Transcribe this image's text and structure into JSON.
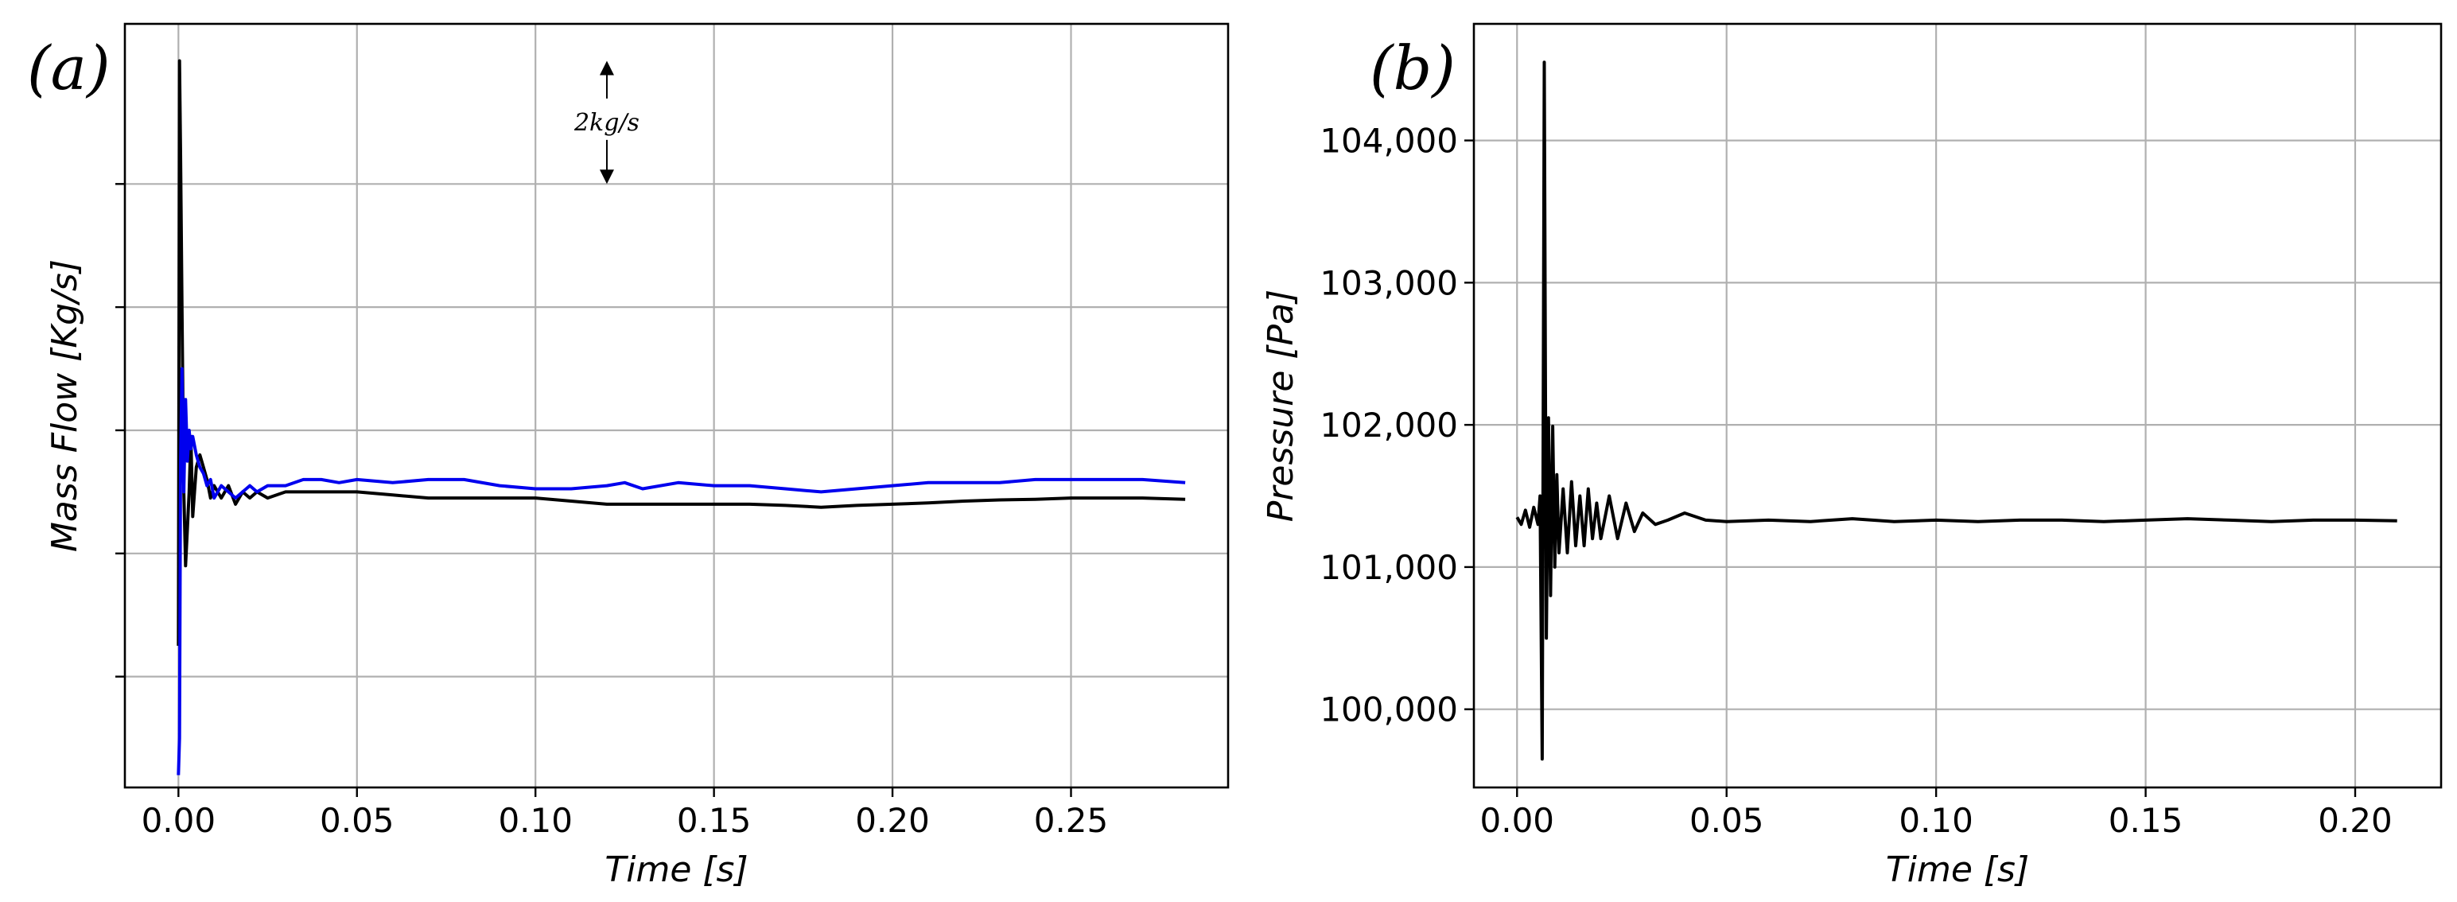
{
  "chart_data": [
    {
      "type": "line",
      "panel_label": "(a)",
      "xlabel": "Time [s]",
      "ylabel": "Mass Flow [Kg/s]",
      "xlim": [
        -0.015,
        0.294
      ],
      "ylim": [
        -1.8,
        10.6
      ],
      "xticks": [
        0.0,
        0.05,
        0.1,
        0.15,
        0.2,
        0.25
      ],
      "xtick_labels": [
        "0.00",
        "0.05",
        "0.10",
        "0.15",
        "0.20",
        "0.25"
      ],
      "yticks": [
        0,
        2,
        4,
        6,
        8
      ],
      "grid": true,
      "colors": {
        "black": "#000000",
        "blue": "#0000ee"
      },
      "annotation": {
        "text": "2kg/s",
        "x": 0.12,
        "y_from": 8.0,
        "y_to": 10.0
      },
      "series": [
        {
          "color": "#000000",
          "x": [
            0.0,
            0.0003,
            0.0006,
            0.001,
            0.0015,
            0.002,
            0.0025,
            0.003,
            0.0035,
            0.004,
            0.005,
            0.006,
            0.007,
            0.008,
            0.009,
            0.01,
            0.012,
            0.014,
            0.016,
            0.018,
            0.02,
            0.022,
            0.025,
            0.03,
            0.035,
            0.04,
            0.05,
            0.06,
            0.07,
            0.08,
            0.09,
            0.1,
            0.11,
            0.12,
            0.13,
            0.14,
            0.15,
            0.16,
            0.17,
            0.18,
            0.19,
            0.2,
            0.21,
            0.22,
            0.23,
            0.24,
            0.25,
            0.26,
            0.27,
            0.282
          ],
          "values": [
            0.5,
            10.0,
            8.5,
            6.0,
            3.0,
            1.8,
            2.4,
            3.0,
            3.9,
            2.6,
            3.4,
            3.6,
            3.4,
            3.2,
            2.9,
            3.1,
            2.9,
            3.1,
            2.8,
            3.0,
            2.9,
            3.0,
            2.9,
            3.0,
            3.0,
            3.0,
            3.0,
            2.95,
            2.9,
            2.9,
            2.9,
            2.9,
            2.85,
            2.8,
            2.8,
            2.8,
            2.8,
            2.8,
            2.78,
            2.75,
            2.78,
            2.8,
            2.82,
            2.85,
            2.87,
            2.88,
            2.9,
            2.9,
            2.9,
            2.88
          ]
        },
        {
          "color": "#0000ee",
          "x": [
            0.0,
            0.0003,
            0.0006,
            0.001,
            0.0015,
            0.002,
            0.0025,
            0.003,
            0.0035,
            0.004,
            0.005,
            0.006,
            0.007,
            0.008,
            0.009,
            0.01,
            0.012,
            0.014,
            0.016,
            0.018,
            0.02,
            0.022,
            0.025,
            0.03,
            0.035,
            0.04,
            0.045,
            0.05,
            0.06,
            0.07,
            0.08,
            0.09,
            0.1,
            0.11,
            0.12,
            0.125,
            0.13,
            0.14,
            0.15,
            0.16,
            0.17,
            0.18,
            0.19,
            0.2,
            0.21,
            0.22,
            0.23,
            0.24,
            0.25,
            0.26,
            0.27,
            0.282
          ],
          "values": [
            -1.6,
            -1.0,
            3.5,
            5.0,
            3.0,
            4.5,
            3.5,
            4.0,
            3.7,
            3.9,
            3.6,
            3.4,
            3.3,
            3.1,
            3.2,
            2.9,
            3.1,
            3.0,
            2.9,
            3.0,
            3.1,
            3.0,
            3.1,
            3.1,
            3.2,
            3.2,
            3.15,
            3.2,
            3.15,
            3.2,
            3.2,
            3.1,
            3.05,
            3.05,
            3.1,
            3.15,
            3.05,
            3.15,
            3.1,
            3.1,
            3.05,
            3.0,
            3.05,
            3.1,
            3.15,
            3.15,
            3.15,
            3.2,
            3.2,
            3.2,
            3.2,
            3.15
          ]
        }
      ]
    },
    {
      "type": "line",
      "panel_label": "(b)",
      "xlabel": "Time [s]",
      "ylabel": "Pressure [Pa]",
      "xlim": [
        -0.0103,
        0.2205
      ],
      "ylim": [
        99450,
        104820
      ],
      "xticks": [
        0.0,
        0.05,
        0.1,
        0.15,
        0.2
      ],
      "xtick_labels": [
        "0.00",
        "0.05",
        "0.10",
        "0.15",
        "0.20"
      ],
      "yticks": [
        100000,
        101000,
        102000,
        103000,
        104000
      ],
      "ytick_labels": [
        "100,000",
        "101,000",
        "102,000",
        "103,000",
        "104,000"
      ],
      "grid": true,
      "series": [
        {
          "color": "#000000",
          "x": [
            0.0,
            0.001,
            0.002,
            0.003,
            0.004,
            0.005,
            0.0055,
            0.006,
            0.0065,
            0.007,
            0.0075,
            0.008,
            0.0085,
            0.009,
            0.0095,
            0.01,
            0.011,
            0.012,
            0.013,
            0.014,
            0.015,
            0.016,
            0.017,
            0.018,
            0.019,
            0.02,
            0.022,
            0.024,
            0.026,
            0.028,
            0.03,
            0.033,
            0.036,
            0.04,
            0.045,
            0.05,
            0.06,
            0.07,
            0.08,
            0.09,
            0.1,
            0.11,
            0.12,
            0.13,
            0.14,
            0.15,
            0.16,
            0.17,
            0.18,
            0.19,
            0.2,
            0.21
          ],
          "values": [
            101350,
            101300,
            101400,
            101280,
            101420,
            101300,
            101500,
            99650,
            104550,
            100500,
            102050,
            100800,
            101990,
            101000,
            101650,
            101100,
            101550,
            101100,
            101600,
            101150,
            101500,
            101150,
            101550,
            101200,
            101450,
            101200,
            101500,
            101200,
            101450,
            101250,
            101380,
            101300,
            101330,
            101380,
            101330,
            101320,
            101330,
            101320,
            101340,
            101320,
            101330,
            101320,
            101330,
            101330,
            101320,
            101330,
            101340,
            101330,
            101320,
            101330,
            101330,
            101325
          ]
        }
      ]
    }
  ]
}
